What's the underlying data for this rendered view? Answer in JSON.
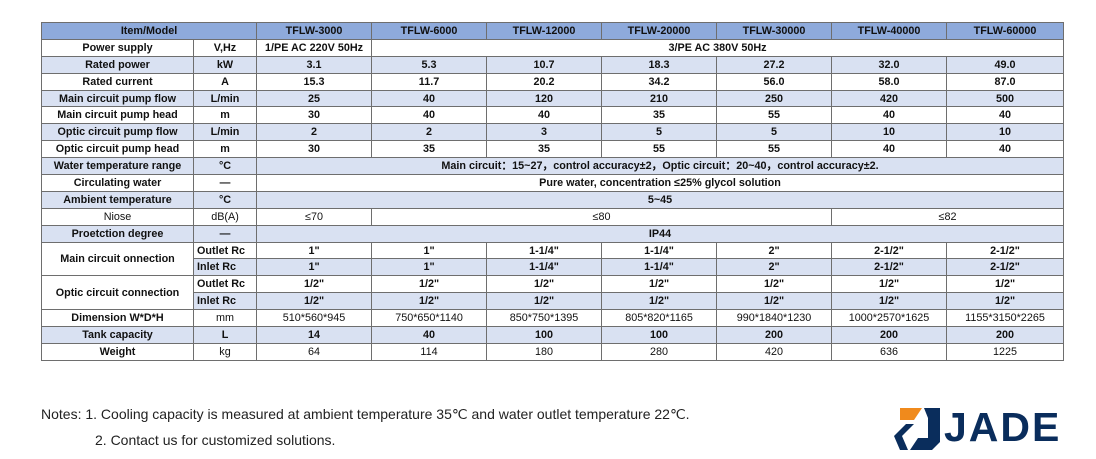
{
  "header": {
    "item_model": "Item/Model",
    "models": [
      "TFLW-3000",
      "TFLW-6000",
      "TFLW-12000",
      "TFLW-20000",
      "TFLW-30000",
      "TFLW-40000",
      "TFLW-60000"
    ]
  },
  "rows": {
    "power_supply": {
      "label": "Power supply",
      "unit": "V,Hz",
      "v1": "1/PE AC 220V 50Hz",
      "v_rest": "3/PE AC 380V 50Hz"
    },
    "rated_power": {
      "label": "Rated power",
      "unit": "kW",
      "values": [
        "3.1",
        "5.3",
        "10.7",
        "18.3",
        "27.2",
        "32.0",
        "49.0"
      ]
    },
    "rated_current": {
      "label": "Rated current",
      "unit": "A",
      "values": [
        "15.3",
        "11.7",
        "20.2",
        "34.2",
        "56.0",
        "58.0",
        "87.0"
      ]
    },
    "main_pump_flow": {
      "label": "Main circuit pump flow",
      "unit": "L/min",
      "values": [
        "25",
        "40",
        "120",
        "210",
        "250",
        "420",
        "500"
      ]
    },
    "main_pump_head": {
      "label": "Main circuit pump head",
      "unit": "m",
      "values": [
        "30",
        "40",
        "40",
        "35",
        "55",
        "40",
        "40"
      ]
    },
    "optic_pump_flow": {
      "label": "Optic circuit pump flow",
      "unit": "L/min",
      "values": [
        "2",
        "2",
        "3",
        "5",
        "5",
        "10",
        "10"
      ]
    },
    "optic_pump_head": {
      "label": "Optic circuit pump head",
      "unit": "m",
      "values": [
        "30",
        "35",
        "35",
        "55",
        "55",
        "40",
        "40"
      ]
    },
    "water_temp": {
      "label": "Water temperature range",
      "unit": "°C",
      "value": "Main circuit：15~27，control accuracy±2，Optic circuit：20~40，control accuracy±2."
    },
    "circulating_water": {
      "label": "Circulating water",
      "unit": "—",
      "value": "Pure water, concentration ≤25% glycol solution"
    },
    "ambient_temp": {
      "label": "Ambient temperature",
      "unit": "°C",
      "value": "5~45"
    },
    "noise": {
      "label": "Niose",
      "unit": "dB(A)",
      "v1": "≤70",
      "v_mid": "≤80",
      "v_end": "≤82"
    },
    "protection": {
      "label": "Proetction degree",
      "unit": "—",
      "value": "IP44"
    },
    "main_connection": {
      "label": "Main circuit onnection",
      "outlet_label": "Outlet Rc",
      "outlet": [
        "1\"",
        "1\"",
        "1-1/4\"",
        "1-1/4\"",
        "2\"",
        "2-1/2\"",
        "2-1/2\""
      ],
      "inlet_label": "Inlet Rc",
      "inlet": [
        "1\"",
        "1\"",
        "1-1/4\"",
        "1-1/4\"",
        "2\"",
        "2-1/2\"",
        "2-1/2\""
      ]
    },
    "optic_connection": {
      "label": "Optic circuit connection",
      "outlet_label": "Outlet Rc",
      "outlet": [
        "1/2\"",
        "1/2\"",
        "1/2\"",
        "1/2\"",
        "1/2\"",
        "1/2\"",
        "1/2\""
      ],
      "inlet_label": "Inlet Rc",
      "inlet": [
        "1/2\"",
        "1/2\"",
        "1/2\"",
        "1/2\"",
        "1/2\"",
        "1/2\"",
        "1/2\""
      ]
    },
    "dimension": {
      "label": "Dimension W*D*H",
      "unit": "mm",
      "values": [
        "510*560*945",
        "750*650*1140",
        "850*750*1395",
        "805*820*1165",
        "990*1840*1230",
        "1000*2570*1625",
        "1155*3150*2265"
      ]
    },
    "tank": {
      "label": "Tank capacity",
      "unit": "L",
      "values": [
        "14",
        "40",
        "100",
        "100",
        "200",
        "200",
        "200"
      ]
    },
    "weight": {
      "label": "Weight",
      "unit": "kg",
      "values": [
        "64",
        "114",
        "180",
        "280",
        "420",
        "636",
        "1225"
      ]
    }
  },
  "notes": {
    "n1": "Notes: 1. Cooling capacity is measured at ambient temperature 35℃ and water outlet temperature 22℃.",
    "n2": "2. Contact us for customized solutions."
  },
  "logo": {
    "text": "JADE",
    "icon": "jade-logo-icon",
    "colors": {
      "orange": "#f08a1c",
      "navy": "#0a2d5c"
    }
  },
  "colors": {
    "header_bg": "#8eaadb",
    "stripe_bg": "#d9e1f2",
    "border": "#6e6e6e"
  }
}
